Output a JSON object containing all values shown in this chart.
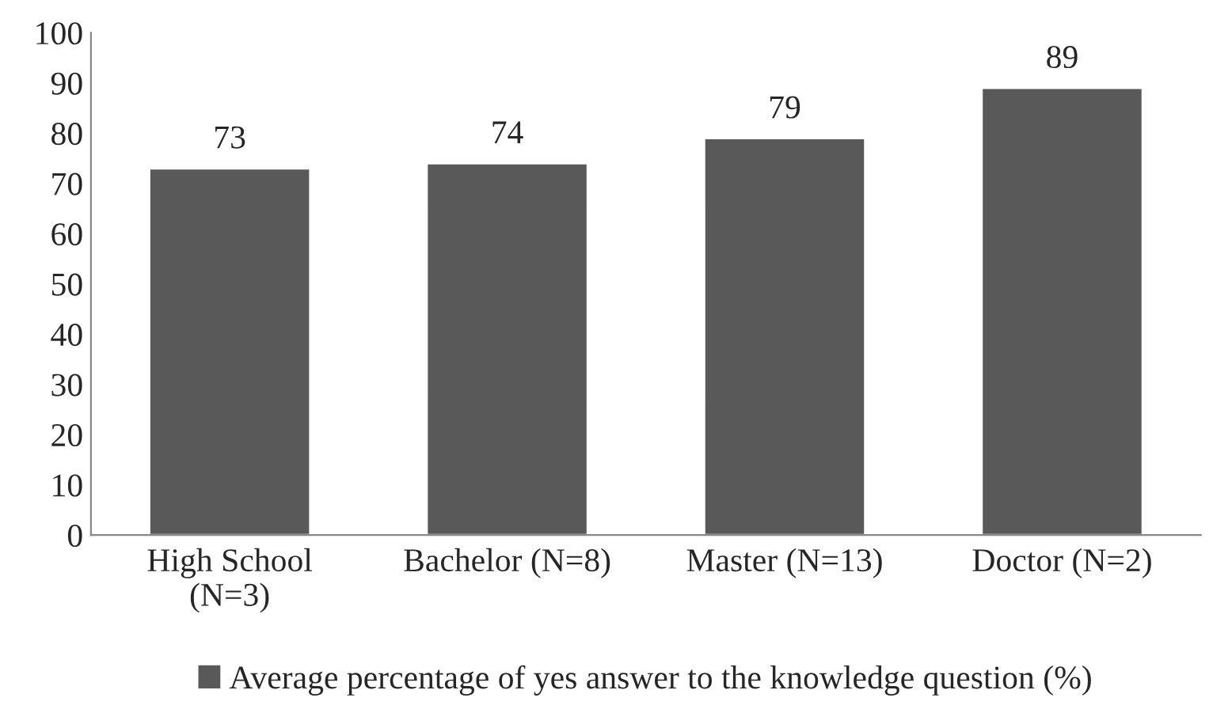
{
  "chart_data": {
    "type": "bar",
    "categories": [
      "High School\n(N=3)",
      "Bachelor (N=8)",
      "Master (N=13)",
      "Doctor (N=2)"
    ],
    "series": [
      {
        "name": "Average percentage of yes answer to the knowledge question (%)",
        "color": "#595959",
        "values": [
          73,
          74,
          79,
          89
        ]
      }
    ],
    "ylim": [
      0,
      100
    ],
    "yticks": [
      0,
      10,
      20,
      30,
      40,
      50,
      60,
      70,
      80,
      90,
      100
    ],
    "data_labels": true,
    "grid": false,
    "legend": "bottom"
  }
}
